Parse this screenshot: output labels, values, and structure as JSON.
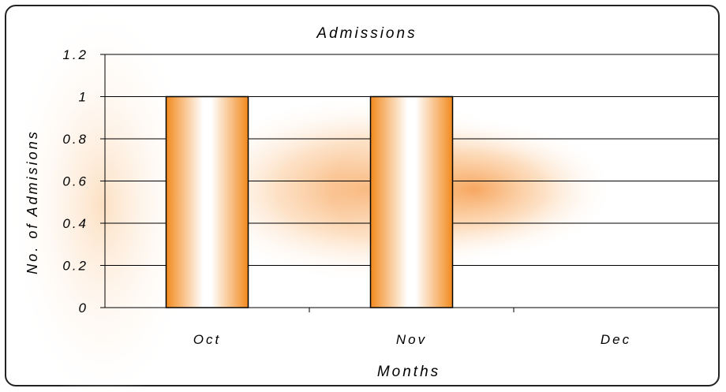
{
  "chart_data": {
    "type": "bar",
    "title": "Admissions",
    "xlabel": "Months",
    "ylabel": "No. of Admisions",
    "categories": [
      "Oct",
      "Nov",
      "Dec"
    ],
    "series": [
      {
        "values": [
          1,
          1,
          0
        ]
      }
    ],
    "ylim": [
      0,
      1.2
    ],
    "yticks": [
      "0",
      "0.2",
      "0.4",
      "0.6",
      "0.8",
      "1",
      "1.2"
    ],
    "grid": true,
    "legend": "none",
    "colors": {
      "bar_edge": "#f28a1e",
      "bar_center": "#ffffff",
      "glow": "#f7a35a",
      "outline": "#000000"
    }
  }
}
